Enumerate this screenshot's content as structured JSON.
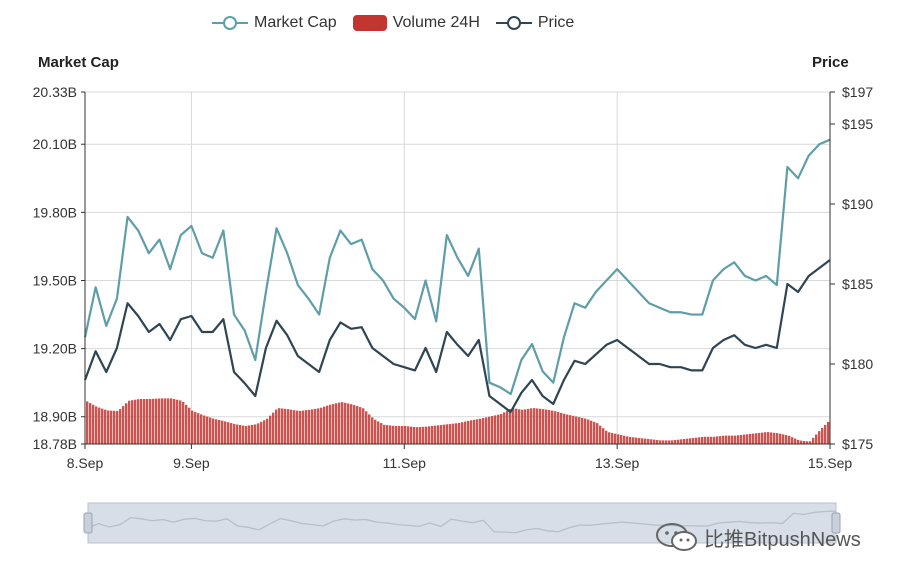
{
  "legend": [
    {
      "name": "Market Cap",
      "color": "#5f9ea8",
      "marker": "line-circle"
    },
    {
      "name": "Volume 24H",
      "color": "#c23531",
      "marker": "rect"
    },
    {
      "name": "Price",
      "color": "#2f4554",
      "marker": "line-circle"
    }
  ],
  "left_axis_title": "Market Cap",
  "right_axis_title": "Price",
  "watermark_text": "比推BitpushNews",
  "chart_data": {
    "type": "line",
    "x_ticks": [
      "8.Sep",
      "9.Sep",
      "11.Sep",
      "13.Sep",
      "15.Sep"
    ],
    "x_range": [
      8.0,
      15.0
    ],
    "left_axis": {
      "ticks": [
        "18.78B",
        "18.90B",
        "19.20B",
        "19.50B",
        "19.80B",
        "20.10B",
        "20.33B"
      ],
      "range": [
        18.78,
        20.33
      ]
    },
    "right_axis": {
      "ticks": [
        "$175",
        "$180",
        "$185",
        "$190",
        "$195",
        "$197"
      ],
      "range": [
        175,
        197
      ]
    },
    "series": [
      {
        "name": "Market Cap",
        "axis": "left",
        "color": "#5f9ea8",
        "x": [
          8.0,
          8.1,
          8.2,
          8.3,
          8.4,
          8.5,
          8.6,
          8.7,
          8.8,
          8.9,
          9.0,
          9.1,
          9.2,
          9.3,
          9.4,
          9.5,
          9.6,
          9.7,
          9.8,
          9.9,
          10.0,
          10.1,
          10.2,
          10.3,
          10.4,
          10.5,
          10.6,
          10.7,
          10.8,
          10.9,
          11.0,
          11.1,
          11.2,
          11.3,
          11.4,
          11.5,
          11.6,
          11.7,
          11.8,
          11.9,
          12.0,
          12.1,
          12.2,
          12.3,
          12.4,
          12.5,
          12.6,
          12.7,
          12.8,
          12.9,
          13.0,
          13.1,
          13.2,
          13.3,
          13.4,
          13.5,
          13.6,
          13.7,
          13.8,
          13.9,
          14.0,
          14.1,
          14.2,
          14.3,
          14.4,
          14.5,
          14.6,
          14.7,
          14.8,
          14.9,
          15.0
        ],
        "values": [
          19.25,
          19.47,
          19.3,
          19.42,
          19.78,
          19.72,
          19.62,
          19.68,
          19.55,
          19.7,
          19.74,
          19.62,
          19.6,
          19.72,
          19.35,
          19.28,
          19.15,
          19.45,
          19.73,
          19.62,
          19.48,
          19.42,
          19.35,
          19.6,
          19.72,
          19.66,
          19.68,
          19.55,
          19.5,
          19.42,
          19.38,
          19.33,
          19.5,
          19.32,
          19.7,
          19.6,
          19.52,
          19.64,
          19.05,
          19.03,
          19.0,
          19.15,
          19.22,
          19.1,
          19.05,
          19.25,
          19.4,
          19.38,
          19.45,
          19.5,
          19.55,
          19.5,
          19.45,
          19.4,
          19.38,
          19.36,
          19.36,
          19.35,
          19.35,
          19.5,
          19.55,
          19.58,
          19.52,
          19.5,
          19.52,
          19.48,
          20.0,
          19.95,
          20.05,
          20.1,
          20.12
        ]
      },
      {
        "name": "Price",
        "axis": "right",
        "color": "#2f4554",
        "x": [
          8.0,
          8.1,
          8.2,
          8.3,
          8.4,
          8.5,
          8.6,
          8.7,
          8.8,
          8.9,
          9.0,
          9.1,
          9.2,
          9.3,
          9.4,
          9.5,
          9.6,
          9.7,
          9.8,
          9.9,
          10.0,
          10.1,
          10.2,
          10.3,
          10.4,
          10.5,
          10.6,
          10.7,
          10.8,
          10.9,
          11.0,
          11.1,
          11.2,
          11.3,
          11.4,
          11.5,
          11.6,
          11.7,
          11.8,
          11.9,
          12.0,
          12.1,
          12.2,
          12.3,
          12.4,
          12.5,
          12.6,
          12.7,
          12.8,
          12.9,
          13.0,
          13.1,
          13.2,
          13.3,
          13.4,
          13.5,
          13.6,
          13.7,
          13.8,
          13.9,
          14.0,
          14.1,
          14.2,
          14.3,
          14.4,
          14.5,
          14.6,
          14.7,
          14.8,
          14.9,
          15.0
        ],
        "values": [
          179.0,
          180.8,
          179.5,
          181.0,
          183.8,
          183.0,
          182.0,
          182.5,
          181.5,
          182.8,
          183.0,
          182.0,
          182.0,
          182.8,
          179.5,
          178.8,
          178.0,
          181.0,
          182.7,
          181.8,
          180.5,
          180.0,
          179.5,
          181.5,
          182.6,
          182.2,
          182.3,
          181.0,
          180.5,
          180.0,
          179.8,
          179.6,
          181.0,
          179.5,
          182.0,
          181.2,
          180.5,
          181.5,
          178.0,
          177.5,
          177.0,
          178.2,
          179.0,
          178.0,
          177.5,
          179.0,
          180.2,
          180.0,
          180.6,
          181.2,
          181.5,
          181.0,
          180.5,
          180.0,
          180.0,
          179.8,
          179.8,
          179.6,
          179.6,
          181.0,
          181.5,
          181.8,
          181.2,
          181.0,
          181.2,
          181.0,
          185.0,
          184.5,
          185.5,
          186.0,
          186.5
        ]
      },
      {
        "name": "Volume 24H",
        "type": "bar",
        "color": "#c23531",
        "x": [
          8.0,
          8.1,
          8.2,
          8.3,
          8.4,
          8.5,
          8.6,
          8.7,
          8.8,
          8.9,
          9.0,
          9.1,
          9.2,
          9.3,
          9.4,
          9.5,
          9.6,
          9.7,
          9.8,
          9.9,
          10.0,
          10.1,
          10.2,
          10.3,
          10.4,
          10.5,
          10.6,
          10.7,
          10.8,
          10.9,
          11.0,
          11.1,
          11.2,
          11.3,
          11.4,
          11.5,
          11.6,
          11.7,
          11.8,
          11.9,
          12.0,
          12.1,
          12.2,
          12.3,
          12.4,
          12.5,
          12.6,
          12.7,
          12.8,
          12.9,
          13.0,
          13.1,
          13.2,
          13.3,
          13.4,
          13.5,
          13.6,
          13.7,
          13.8,
          13.9,
          14.0,
          14.1,
          14.2,
          14.3,
          14.4,
          14.5,
          14.6,
          14.7,
          14.8,
          14.9,
          15.0
        ],
        "relative_level": [
          0.72,
          0.62,
          0.56,
          0.55,
          0.72,
          0.75,
          0.75,
          0.76,
          0.76,
          0.72,
          0.55,
          0.48,
          0.42,
          0.38,
          0.33,
          0.3,
          0.33,
          0.42,
          0.6,
          0.58,
          0.55,
          0.57,
          0.6,
          0.66,
          0.7,
          0.66,
          0.6,
          0.42,
          0.32,
          0.3,
          0.3,
          0.28,
          0.29,
          0.31,
          0.33,
          0.35,
          0.39,
          0.42,
          0.46,
          0.5,
          0.6,
          0.57,
          0.6,
          0.58,
          0.55,
          0.5,
          0.46,
          0.42,
          0.35,
          0.2,
          0.16,
          0.12,
          0.1,
          0.08,
          0.06,
          0.06,
          0.08,
          0.1,
          0.12,
          0.12,
          0.14,
          0.14,
          0.16,
          0.18,
          0.2,
          0.18,
          0.14,
          0.06,
          0.04,
          0.24,
          0.42
        ]
      }
    ]
  }
}
